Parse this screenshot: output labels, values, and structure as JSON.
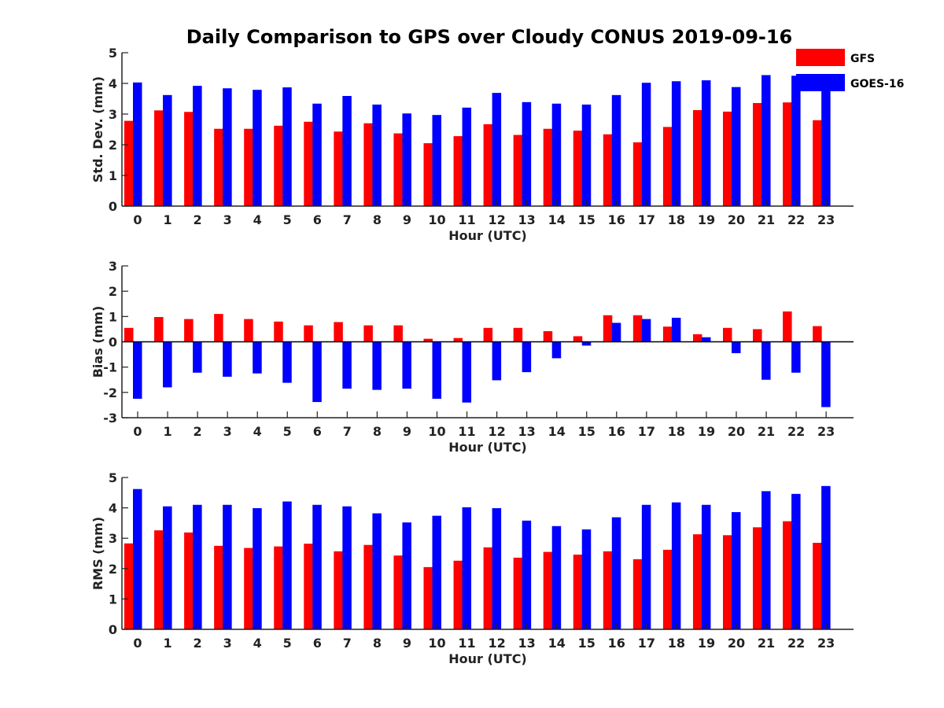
{
  "title": "Daily Comparison to GPS over Cloudy CONUS 2019-09-16",
  "legend": {
    "placement": "top-right",
    "entries": [
      {
        "name": "GFS",
        "color": "#ff0000"
      },
      {
        "name": "GOES-16",
        "color": "#0000ff"
      }
    ]
  },
  "chart_data": [
    {
      "type": "bar",
      "xlabel": "Hour (UTC)",
      "ylabel": "Std. Dev. (mm)",
      "ylim": [
        0,
        5
      ],
      "yticks": [
        0,
        1,
        2,
        3,
        4,
        5
      ],
      "categories": [
        "0",
        "1",
        "2",
        "3",
        "4",
        "5",
        "6",
        "7",
        "8",
        "9",
        "10",
        "11",
        "12",
        "13",
        "14",
        "15",
        "16",
        "17",
        "18",
        "19",
        "20",
        "21",
        "22",
        "23"
      ],
      "series": [
        {
          "name": "GFS",
          "color": "#ff0000",
          "values": [
            2.78,
            3.12,
            3.07,
            2.52,
            2.52,
            2.62,
            2.75,
            2.43,
            2.7,
            2.37,
            2.05,
            2.28,
            2.67,
            2.32,
            2.52,
            2.46,
            2.34,
            2.08,
            2.58,
            3.13,
            3.08,
            3.36,
            3.38,
            2.8
          ]
        },
        {
          "name": "GOES-16",
          "color": "#0000ff",
          "values": [
            4.03,
            3.62,
            3.92,
            3.84,
            3.79,
            3.87,
            3.34,
            3.59,
            3.31,
            3.02,
            2.97,
            3.21,
            3.69,
            3.39,
            3.34,
            3.31,
            3.62,
            4.02,
            4.07,
            4.1,
            3.88,
            4.27,
            4.25,
            3.85
          ]
        }
      ]
    },
    {
      "type": "bar",
      "xlabel": "Hour (UTC)",
      "ylabel": "Bias (mm)",
      "ylim": [
        -3,
        3
      ],
      "yticks": [
        -3,
        -2,
        -1,
        0,
        1,
        2,
        3
      ],
      "categories": [
        "0",
        "1",
        "2",
        "3",
        "4",
        "5",
        "6",
        "7",
        "8",
        "9",
        "10",
        "11",
        "12",
        "13",
        "14",
        "15",
        "16",
        "17",
        "18",
        "19",
        "20",
        "21",
        "22",
        "23"
      ],
      "series": [
        {
          "name": "GFS",
          "color": "#ff0000",
          "values": [
            0.55,
            0.98,
            0.9,
            1.1,
            0.9,
            0.8,
            0.65,
            0.78,
            0.65,
            0.65,
            0.12,
            0.15,
            0.55,
            0.55,
            0.42,
            0.22,
            1.05,
            1.05,
            0.6,
            0.3,
            0.55,
            0.5,
            1.2,
            0.62
          ]
        },
        {
          "name": "GOES-16",
          "color": "#0000ff",
          "values": [
            -2.25,
            -1.8,
            -1.22,
            -1.38,
            -1.25,
            -1.62,
            -2.38,
            -1.85,
            -1.9,
            -1.85,
            -2.25,
            -2.4,
            -1.52,
            -1.2,
            -0.65,
            -0.15,
            0.75,
            0.9,
            0.95,
            0.18,
            -0.45,
            -1.5,
            -1.22,
            -2.58
          ]
        }
      ]
    },
    {
      "type": "bar",
      "xlabel": "Hour (UTC)",
      "ylabel": "RMS (mm)",
      "ylim": [
        0,
        5
      ],
      "yticks": [
        0,
        1,
        2,
        3,
        4,
        5
      ],
      "categories": [
        "0",
        "1",
        "2",
        "3",
        "4",
        "5",
        "6",
        "7",
        "8",
        "9",
        "10",
        "11",
        "12",
        "13",
        "14",
        "15",
        "16",
        "17",
        "18",
        "19",
        "20",
        "21",
        "22",
        "23"
      ],
      "series": [
        {
          "name": "GFS",
          "color": "#ff0000",
          "values": [
            2.83,
            3.26,
            3.19,
            2.75,
            2.68,
            2.73,
            2.82,
            2.57,
            2.78,
            2.43,
            2.05,
            2.26,
            2.7,
            2.36,
            2.55,
            2.46,
            2.57,
            2.31,
            2.62,
            3.13,
            3.1,
            3.36,
            3.56,
            2.85
          ]
        },
        {
          "name": "GOES-16",
          "color": "#0000ff",
          "values": [
            4.62,
            4.05,
            4.1,
            4.1,
            3.99,
            4.21,
            4.1,
            4.05,
            3.82,
            3.52,
            3.74,
            4.02,
            3.99,
            3.58,
            3.4,
            3.29,
            3.69,
            4.1,
            4.18,
            4.1,
            3.86,
            4.55,
            4.46,
            4.72
          ]
        }
      ]
    }
  ]
}
